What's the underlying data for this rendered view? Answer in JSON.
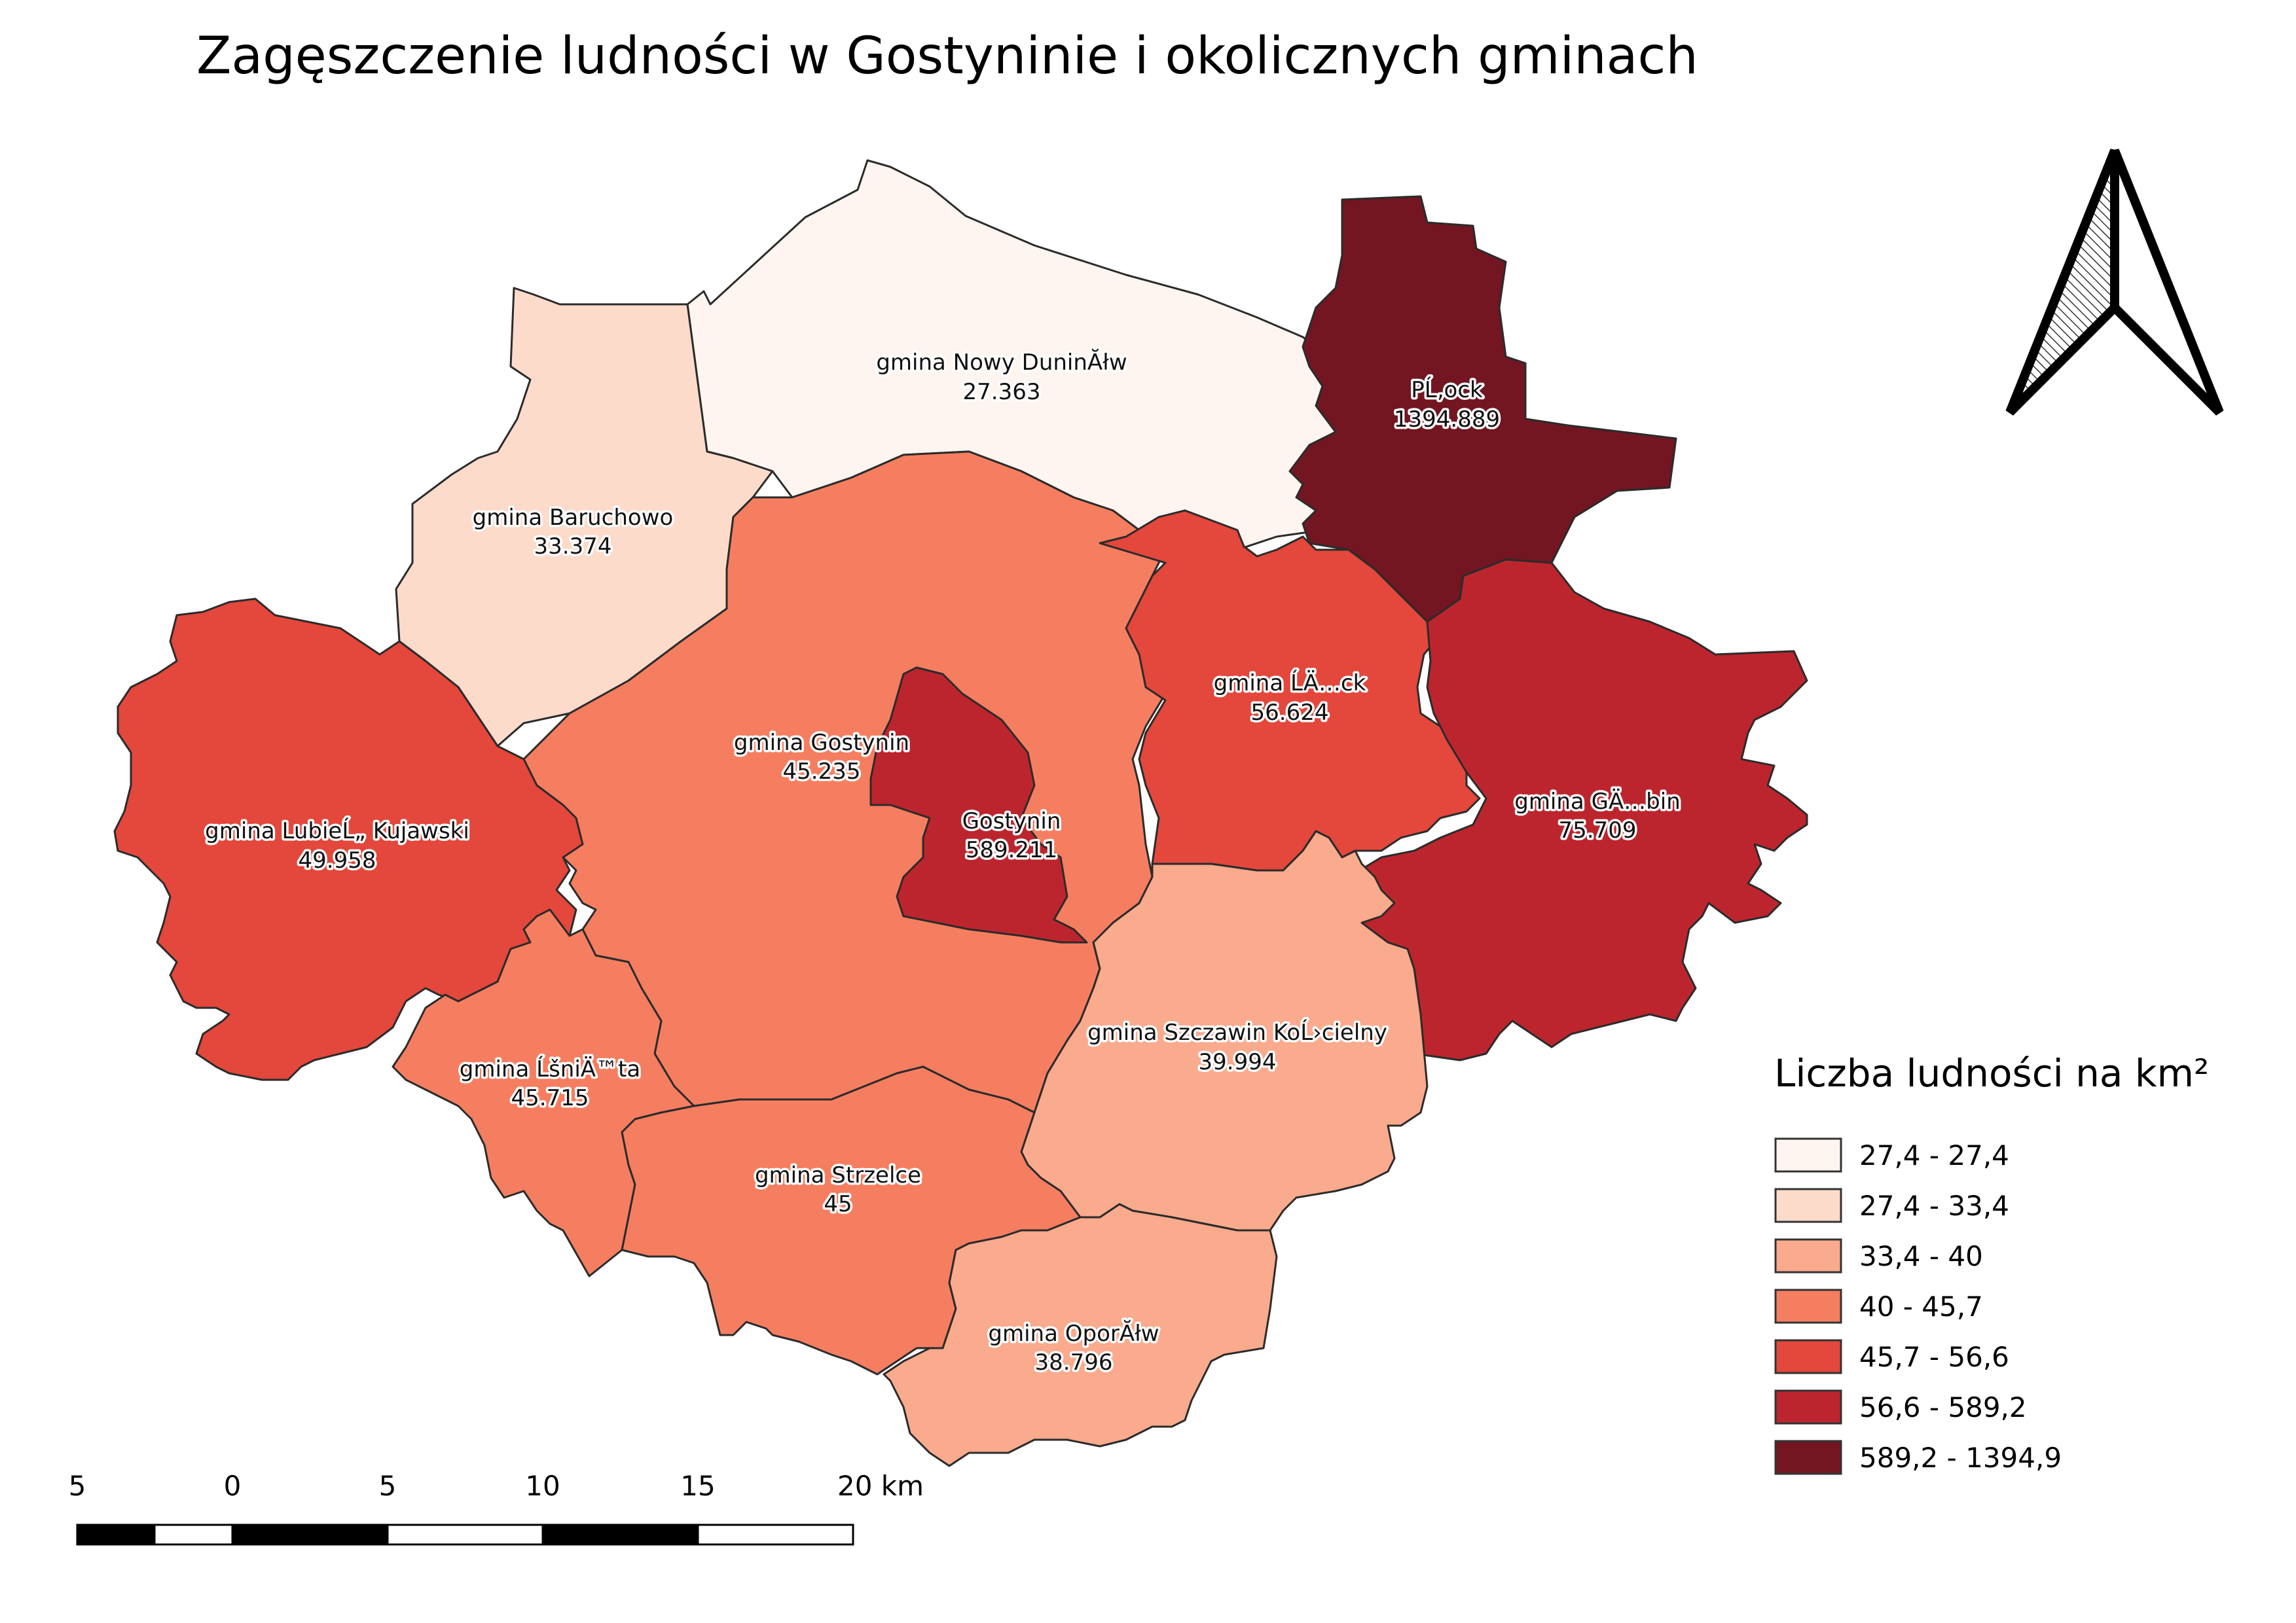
{
  "title": "Zagęszczenie ludności w Gostyninie i okolicznych gminach",
  "regions": [
    {
      "id": "nowy-duninow",
      "name": "gmina Nowy DuninĂłw",
      "value": "27.363",
      "color": "#fff5f0"
    },
    {
      "id": "baruchowo",
      "name": "gmina Baruchowo",
      "value": "33.374",
      "color": "#fcdbcb"
    },
    {
      "id": "plock",
      "name": "PĹ‚ock",
      "value": "1394.889",
      "color": "#731622"
    },
    {
      "id": "gostynin-gmina",
      "name": "gmina Gostynin",
      "value": "45.235",
      "color": "#f67e60"
    },
    {
      "id": "gostynin",
      "name": "Gostynin",
      "value": "589.211",
      "color": "#bd252e"
    },
    {
      "id": "lack",
      "name": "gmina ĹÄ…ck",
      "value": "56.624",
      "color": "#e4473b"
    },
    {
      "id": "gabin",
      "name": "gmina GÄ…bin",
      "value": "75.709",
      "color": "#bd252e"
    },
    {
      "id": "lubien",
      "name": "gmina LubieĹ„ Kujawski",
      "value": "49.958",
      "color": "#e4473b"
    },
    {
      "id": "szczawin",
      "name": "gmina Szczawin KoĹ›cielny",
      "value": "39.994",
      "color": "#faaa8d"
    },
    {
      "id": "sniecta",
      "name": "gmina ĹšniÄ™ta",
      "value": "45.715",
      "color": "#f67e60"
    },
    {
      "id": "strzelce",
      "name": "gmina Strzelce",
      "value": "45",
      "color": "#f67e60"
    },
    {
      "id": "oporow",
      "name": "gmina OporĂłw",
      "value": "38.796",
      "color": "#faaa8d"
    }
  ],
  "legend": {
    "title": "Liczba ludności na km²",
    "classes": [
      {
        "label": "27,4 - 27,4",
        "color": "#fff5f0"
      },
      {
        "label": "27,4 - 33,4",
        "color": "#fcdbcb"
      },
      {
        "label": "33,4 - 40",
        "color": "#faaa8d"
      },
      {
        "label": "40 - 45,7",
        "color": "#f67e60"
      },
      {
        "label": "45,7 - 56,6",
        "color": "#e4473b"
      },
      {
        "label": "56,6 - 589,2",
        "color": "#bd252e"
      },
      {
        "label": "589,2 - 1394,9",
        "color": "#731622"
      }
    ]
  },
  "scale_bar": {
    "labels": [
      "5",
      "0",
      "5",
      "10",
      "15",
      "20 km"
    ]
  },
  "north_arrow": {
    "icon": "north-arrow-icon"
  }
}
